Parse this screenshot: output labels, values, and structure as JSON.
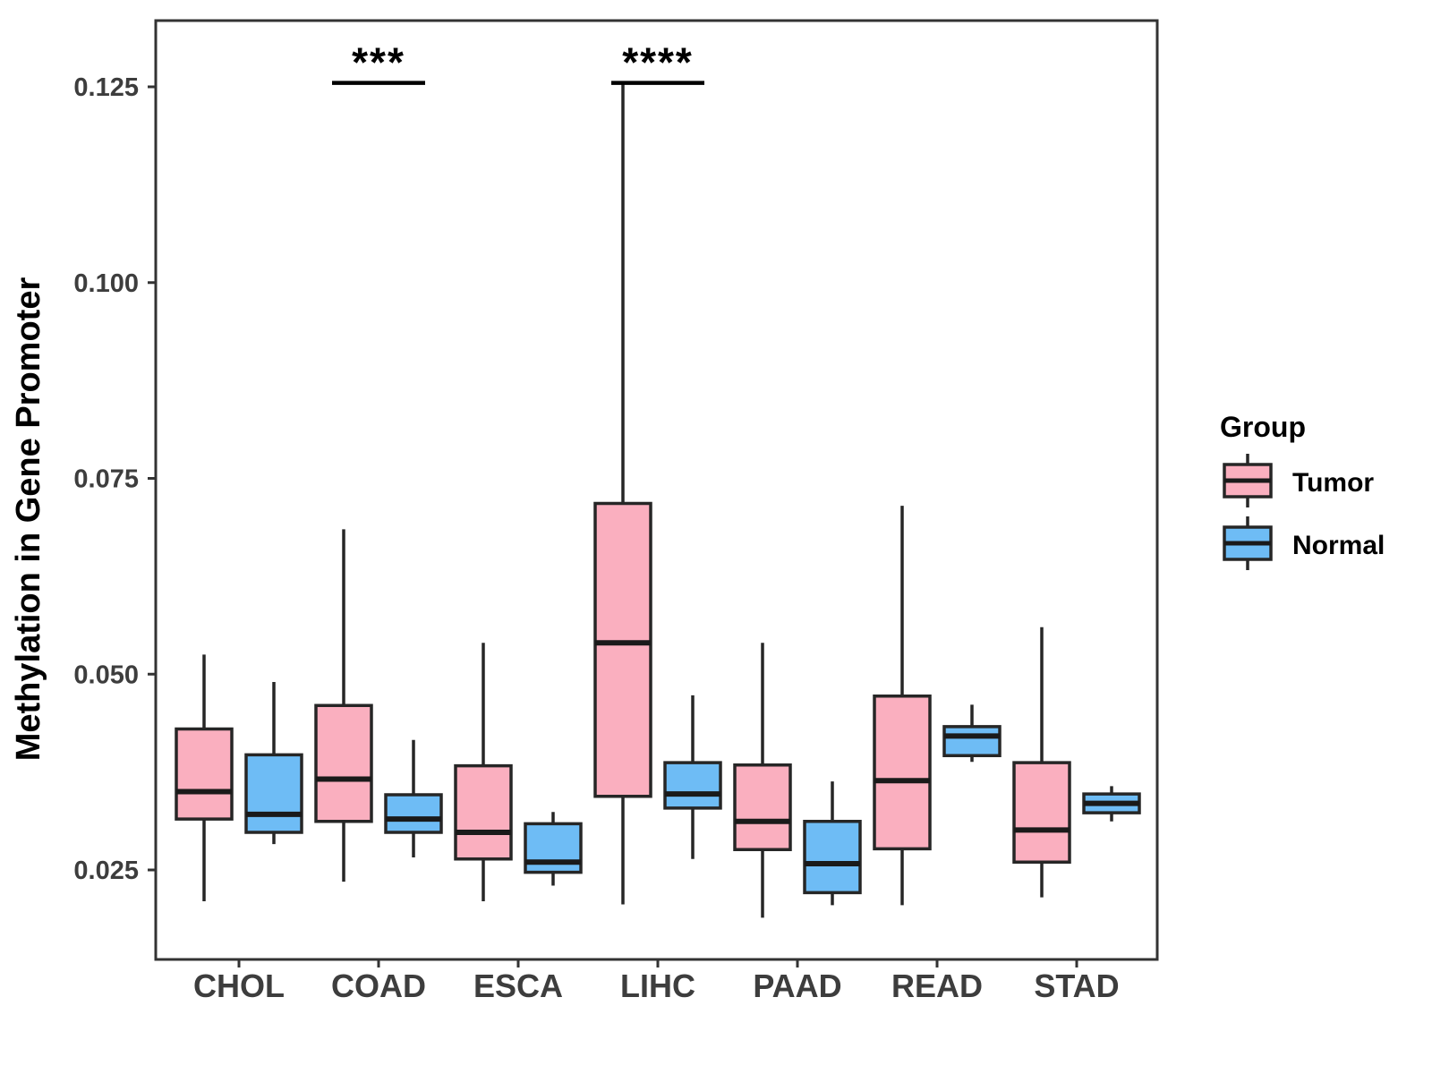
{
  "figure": {
    "background": "#FFFFFF"
  },
  "chart_data": {
    "type": "boxplot",
    "title": "",
    "xlabel": "",
    "ylabel": "Methylation in Gene Promoter",
    "categories": [
      "CHOL",
      "COAD",
      "ESCA",
      "LIHC",
      "PAAD",
      "READ",
      "STAD"
    ],
    "y_ticks": [
      "0.025",
      "0.050",
      "0.075",
      "0.100",
      "0.125"
    ],
    "ylim": [
      0.0135,
      0.1335
    ],
    "grid": false,
    "legend": {
      "title": "Group",
      "position": "right",
      "entries": [
        {
          "label": "Tumor",
          "color": "#FAAFBF"
        },
        {
          "label": "Normal",
          "color": "#6EBCF5"
        }
      ]
    },
    "series": [
      {
        "name": "Tumor",
        "color": "#FAAFBF",
        "boxes": [
          {
            "category": "CHOL",
            "whisker_low": 0.021,
            "q1": 0.0315,
            "median": 0.035,
            "q3": 0.043,
            "whisker_high": 0.0525
          },
          {
            "category": "COAD",
            "whisker_low": 0.0235,
            "q1": 0.0312,
            "median": 0.0366,
            "q3": 0.046,
            "whisker_high": 0.0685
          },
          {
            "category": "ESCA",
            "whisker_low": 0.021,
            "q1": 0.0264,
            "median": 0.0298,
            "q3": 0.0383,
            "whisker_high": 0.054
          },
          {
            "category": "LIHC",
            "whisker_low": 0.0206,
            "q1": 0.0344,
            "median": 0.054,
            "q3": 0.0718,
            "whisker_high": 0.1255
          },
          {
            "category": "PAAD",
            "whisker_low": 0.0189,
            "q1": 0.0276,
            "median": 0.0312,
            "q3": 0.0384,
            "whisker_high": 0.054
          },
          {
            "category": "READ",
            "whisker_low": 0.0205,
            "q1": 0.0277,
            "median": 0.0364,
            "q3": 0.0472,
            "whisker_high": 0.0715
          },
          {
            "category": "STAD",
            "whisker_low": 0.0215,
            "q1": 0.026,
            "median": 0.0301,
            "q3": 0.0387,
            "whisker_high": 0.056
          }
        ]
      },
      {
        "name": "Normal",
        "color": "#6EBCF5",
        "boxes": [
          {
            "category": "CHOL",
            "whisker_low": 0.0283,
            "q1": 0.0298,
            "median": 0.0321,
            "q3": 0.0397,
            "whisker_high": 0.049
          },
          {
            "category": "COAD",
            "whisker_low": 0.0266,
            "q1": 0.0298,
            "median": 0.0315,
            "q3": 0.0346,
            "whisker_high": 0.0416
          },
          {
            "category": "ESCA",
            "whisker_low": 0.023,
            "q1": 0.0247,
            "median": 0.026,
            "q3": 0.0309,
            "whisker_high": 0.0324
          },
          {
            "category": "LIHC",
            "whisker_low": 0.0264,
            "q1": 0.0329,
            "median": 0.0347,
            "q3": 0.0387,
            "whisker_high": 0.0473
          },
          {
            "category": "PAAD",
            "whisker_low": 0.0205,
            "q1": 0.0221,
            "median": 0.0258,
            "q3": 0.0312,
            "whisker_high": 0.0363
          },
          {
            "category": "READ",
            "whisker_low": 0.0388,
            "q1": 0.0396,
            "median": 0.0421,
            "q3": 0.0433,
            "whisker_high": 0.0461
          },
          {
            "category": "STAD",
            "whisker_low": 0.0312,
            "q1": 0.0323,
            "median": 0.0335,
            "q3": 0.0347,
            "whisker_high": 0.0357
          }
        ]
      }
    ],
    "annotations": [
      {
        "category": "COAD",
        "label": "***",
        "line_y": 0.1255
      },
      {
        "category": "LIHC",
        "label": "****",
        "line_y": 0.1255
      }
    ]
  },
  "style": {
    "box_stroke": "#262626",
    "median_stroke": "#1A1A1A",
    "panel_border_color": "#333333",
    "axis_text_color": "#3D3D3D",
    "axis_title_color": "#000000",
    "annotation_color": "#000000"
  }
}
